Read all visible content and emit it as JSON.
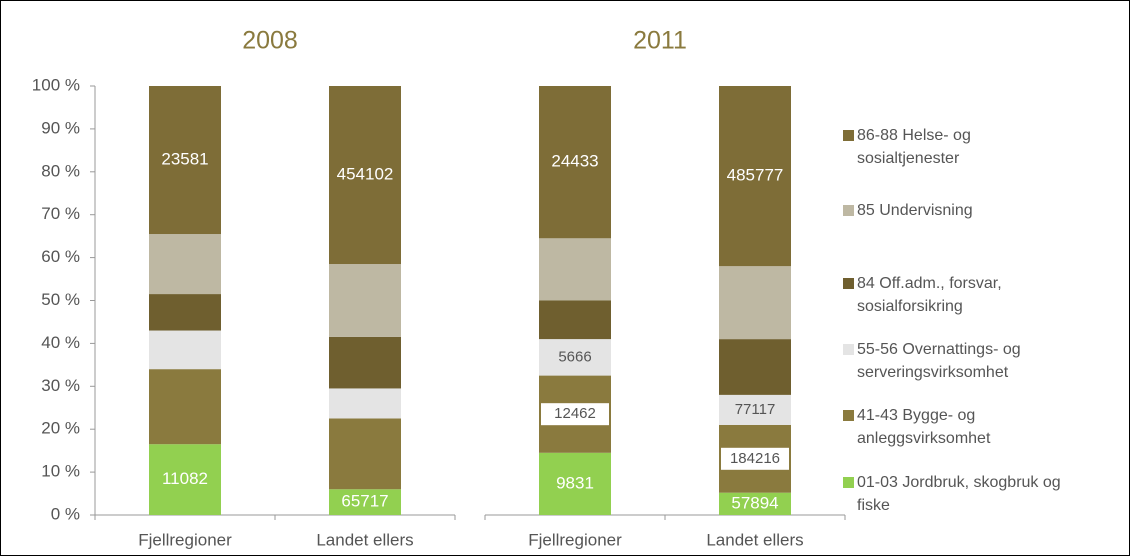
{
  "chart_data": {
    "type": "bar",
    "stacked": true,
    "ylim": [
      0,
      100
    ],
    "yticks": [
      {
        "value": 0,
        "label": "0 %"
      },
      {
        "value": 10,
        "label": "10 %"
      },
      {
        "value": 20,
        "label": "20 %"
      },
      {
        "value": 30,
        "label": "30 %"
      },
      {
        "value": 40,
        "label": "40 %"
      },
      {
        "value": 50,
        "label": "50 %"
      },
      {
        "value": 60,
        "label": "60 %"
      },
      {
        "value": 70,
        "label": "70 %"
      },
      {
        "value": 80,
        "label": "80 %"
      },
      {
        "value": 90,
        "label": "90 %"
      },
      {
        "value": 100,
        "label": "100 %"
      }
    ],
    "categories": [
      "Fjellregioner",
      "Landet ellers"
    ],
    "series": [
      {
        "name": "01-03 Jordbruk, skogbruk og fiske",
        "color": "#92d050"
      },
      {
        "name": "41-43 Bygge- og anleggsvirksomhet",
        "color": "#8a7a3e"
      },
      {
        "name": "55-56 Overnattings- og serveringsvirksomhet",
        "color": "#e4e4e4"
      },
      {
        "name": "84 Off.adm., forsvar, sosialforsikring",
        "color": "#6f5f2f"
      },
      {
        "name": "85 Undervisning",
        "color": "#beb8a3"
      },
      {
        "name": "86-88 Helse- og sosialtjenester",
        "color": "#7e6d37"
      }
    ],
    "panels": [
      {
        "title": "2008",
        "series": [
          {
            "values": [
              16.5,
              6
            ],
            "data_labels": [
              11082,
              65717
            ]
          },
          {
            "values": [
              17.5,
              16.5
            ],
            "data_labels": [
              null,
              null
            ]
          },
          {
            "values": [
              9,
              7
            ],
            "data_labels": [
              null,
              null
            ]
          },
          {
            "values": [
              8.5,
              12
            ],
            "data_labels": [
              null,
              null
            ]
          },
          {
            "values": [
              14,
              17
            ],
            "data_labels": [
              null,
              null
            ]
          },
          {
            "values": [
              34.5,
              41.5
            ],
            "data_labels": [
              23581,
              454102
            ]
          }
        ]
      },
      {
        "title": "2011",
        "series": [
          {
            "values": [
              14.5,
              5.2
            ],
            "data_labels": [
              9831,
              57894
            ]
          },
          {
            "values": [
              18,
              15.8
            ],
            "data_labels": [
              12462,
              184216
            ]
          },
          {
            "values": [
              8.5,
              7
            ],
            "data_labels": [
              5666,
              77117
            ]
          },
          {
            "values": [
              9,
              13
            ],
            "data_labels": [
              null,
              null
            ]
          },
          {
            "values": [
              14.5,
              17
            ],
            "data_labels": [
              null,
              null
            ]
          },
          {
            "values": [
              35.5,
              42
            ],
            "data_labels": [
              24433,
              485777
            ]
          }
        ]
      }
    ]
  }
}
